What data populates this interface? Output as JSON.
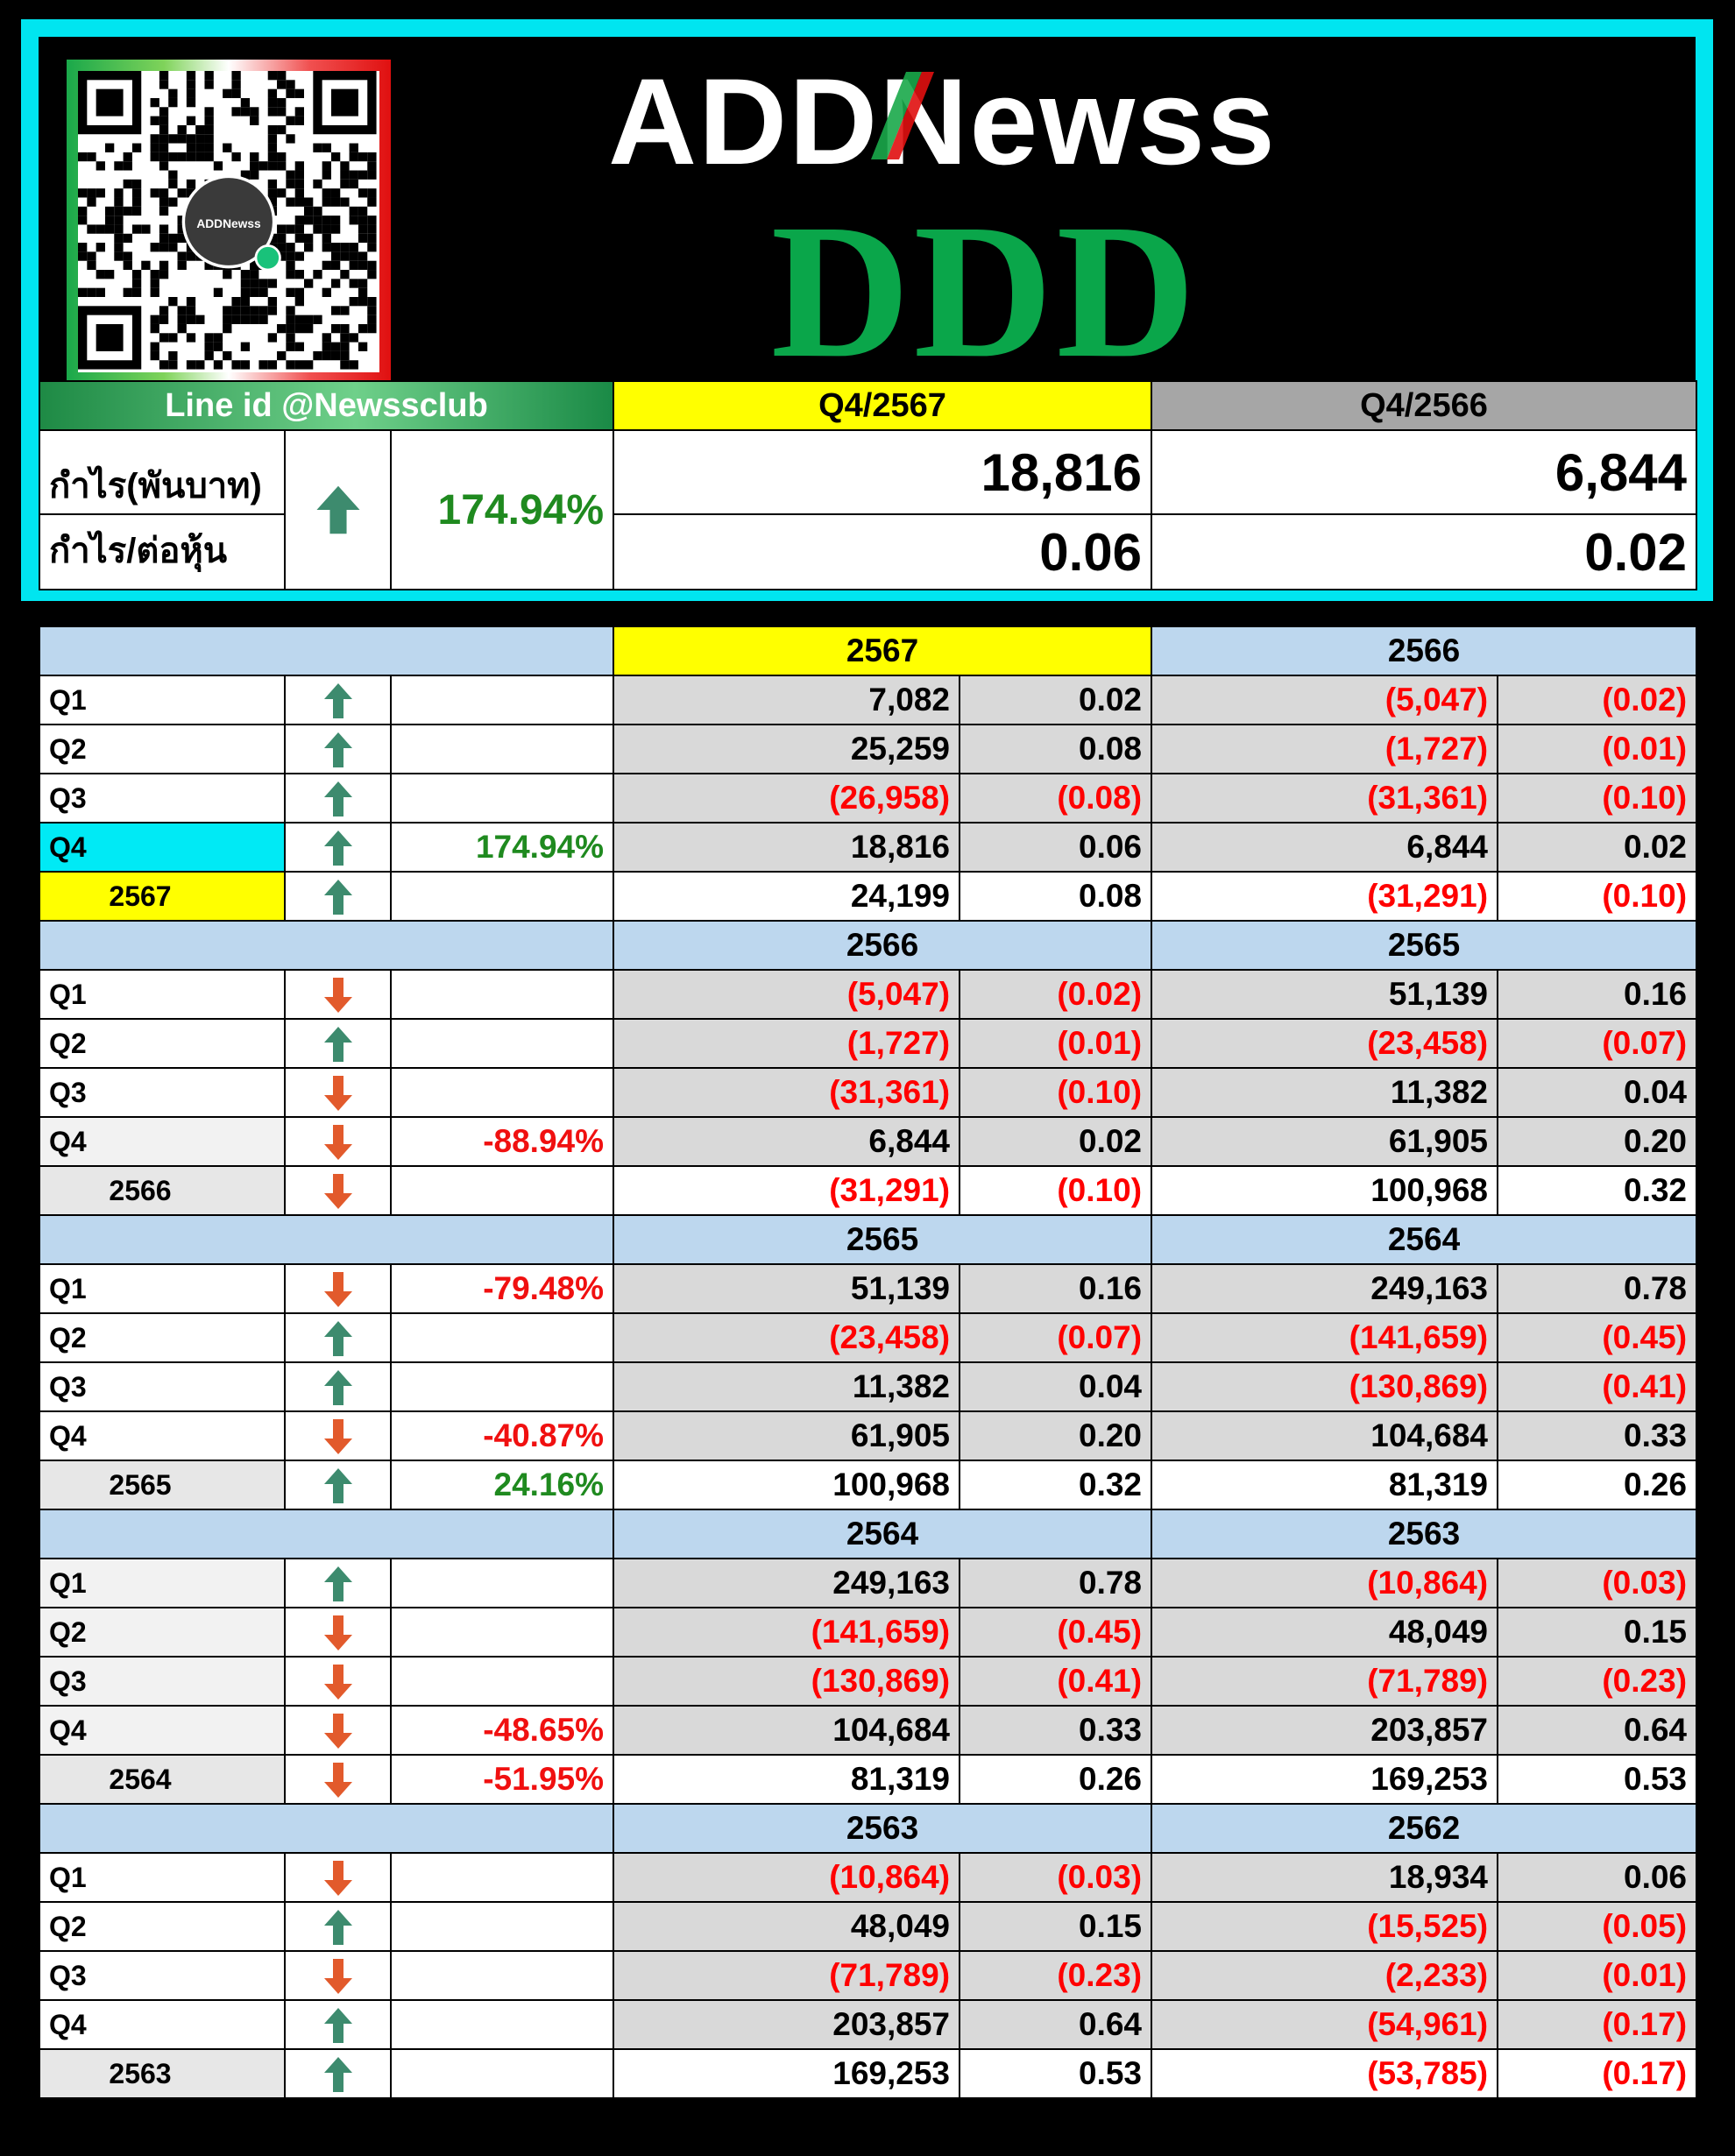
{
  "brand": {
    "logo_text": "ADDNewss",
    "qr_center_text": "ADDNewss"
  },
  "ticker": "DDD",
  "summary": {
    "line_id": "Line id @Newssclub",
    "period_current": "Q4/2567",
    "period_previous": "Q4/2566",
    "profit_label": "กำไร(พันบาท)",
    "eps_label": "กำไร/ต่อหุ้น",
    "direction": "up",
    "change_pct": "174.94%",
    "profit_current": "18,816",
    "profit_previous": "6,844",
    "eps_current": "0.06",
    "eps_previous": "0.02"
  },
  "blocks": [
    {
      "year_current": "2567",
      "year_previous": "2566",
      "current_highlight": true,
      "rows": [
        {
          "label": "Q1",
          "dir": "up",
          "pct": "",
          "profit": "7,082",
          "eps": "0.02",
          "prev_profit": "(5,047)",
          "prev_eps": "(0.02)"
        },
        {
          "label": "Q2",
          "dir": "up",
          "pct": "",
          "profit": "25,259",
          "eps": "0.08",
          "prev_profit": "(1,727)",
          "prev_eps": "(0.01)"
        },
        {
          "label": "Q3",
          "dir": "up",
          "pct": "",
          "profit": "(26,958)",
          "eps": "(0.08)",
          "prev_profit": "(31,361)",
          "prev_eps": "(0.10)"
        },
        {
          "label": "Q4",
          "dir": "up",
          "pct": "174.94%",
          "profit": "18,816",
          "eps": "0.06",
          "prev_profit": "6,844",
          "prev_eps": "0.02",
          "label_style": "cyan"
        },
        {
          "label": "2567",
          "dir": "up",
          "pct": "",
          "profit": "24,199",
          "eps": "0.08",
          "prev_profit": "(31,291)",
          "prev_eps": "(0.10)",
          "is_total": true,
          "label_style": "yellow"
        }
      ]
    },
    {
      "year_current": "2566",
      "year_previous": "2565",
      "current_highlight": false,
      "rows": [
        {
          "label": "Q1",
          "dir": "down",
          "pct": "",
          "profit": "(5,047)",
          "eps": "(0.02)",
          "prev_profit": "51,139",
          "prev_eps": "0.16"
        },
        {
          "label": "Q2",
          "dir": "up",
          "pct": "",
          "profit": "(1,727)",
          "eps": "(0.01)",
          "prev_profit": "(23,458)",
          "prev_eps": "(0.07)"
        },
        {
          "label": "Q3",
          "dir": "down",
          "pct": "",
          "profit": "(31,361)",
          "eps": "(0.10)",
          "prev_profit": "11,382",
          "prev_eps": "0.04"
        },
        {
          "label": "Q4",
          "dir": "down",
          "pct": "-88.94%",
          "profit": "6,844",
          "eps": "0.02",
          "prev_profit": "61,905",
          "prev_eps": "0.20",
          "label_style": "gray"
        },
        {
          "label": "2566",
          "dir": "down",
          "pct": "",
          "profit": "(31,291)",
          "eps": "(0.10)",
          "prev_profit": "100,968",
          "prev_eps": "0.32",
          "is_total": true,
          "label_style": "gray"
        }
      ]
    },
    {
      "year_current": "2565",
      "year_previous": "2564",
      "current_highlight": false,
      "rows": [
        {
          "label": "Q1",
          "dir": "down",
          "pct": "-79.48%",
          "profit": "51,139",
          "eps": "0.16",
          "prev_profit": "249,163",
          "prev_eps": "0.78"
        },
        {
          "label": "Q2",
          "dir": "up",
          "pct": "",
          "profit": "(23,458)",
          "eps": "(0.07)",
          "prev_profit": "(141,659)",
          "prev_eps": "(0.45)"
        },
        {
          "label": "Q3",
          "dir": "up",
          "pct": "",
          "profit": "11,382",
          "eps": "0.04",
          "prev_profit": "(130,869)",
          "prev_eps": "(0.41)"
        },
        {
          "label": "Q4",
          "dir": "down",
          "pct": "-40.87%",
          "profit": "61,905",
          "eps": "0.20",
          "prev_profit": "104,684",
          "prev_eps": "0.33"
        },
        {
          "label": "2565",
          "dir": "up",
          "pct": "24.16%",
          "profit": "100,968",
          "eps": "0.32",
          "prev_profit": "81,319",
          "prev_eps": "0.26",
          "is_total": true,
          "label_style": "gray"
        }
      ]
    },
    {
      "year_current": "2564",
      "year_previous": "2563",
      "current_highlight": false,
      "rows": [
        {
          "label": "Q1",
          "dir": "up",
          "pct": "",
          "profit": "249,163",
          "eps": "0.78",
          "prev_profit": "(10,864)",
          "prev_eps": "(0.03)",
          "label_style": "gray"
        },
        {
          "label": "Q2",
          "dir": "down",
          "pct": "",
          "profit": "(141,659)",
          "eps": "(0.45)",
          "prev_profit": "48,049",
          "prev_eps": "0.15",
          "label_style": "gray"
        },
        {
          "label": "Q3",
          "dir": "down",
          "pct": "",
          "profit": "(130,869)",
          "eps": "(0.41)",
          "prev_profit": "(71,789)",
          "prev_eps": "(0.23)",
          "label_style": "gray"
        },
        {
          "label": "Q4",
          "dir": "down",
          "pct": "-48.65%",
          "profit": "104,684",
          "eps": "0.33",
          "prev_profit": "203,857",
          "prev_eps": "0.64",
          "label_style": "gray"
        },
        {
          "label": "2564",
          "dir": "down",
          "pct": "-51.95%",
          "profit": "81,319",
          "eps": "0.26",
          "prev_profit": "169,253",
          "prev_eps": "0.53",
          "is_total": true,
          "label_style": "gray"
        }
      ]
    },
    {
      "year_current": "2563",
      "year_previous": "2562",
      "current_highlight": false,
      "rows": [
        {
          "label": "Q1",
          "dir": "down",
          "pct": "",
          "profit": "(10,864)",
          "eps": "(0.03)",
          "prev_profit": "18,934",
          "prev_eps": "0.06"
        },
        {
          "label": "Q2",
          "dir": "up",
          "pct": "",
          "profit": "48,049",
          "eps": "0.15",
          "prev_profit": "(15,525)",
          "prev_eps": "(0.05)"
        },
        {
          "label": "Q3",
          "dir": "down",
          "pct": "",
          "profit": "(71,789)",
          "eps": "(0.23)",
          "prev_profit": "(2,233)",
          "prev_eps": "(0.01)"
        },
        {
          "label": "Q4",
          "dir": "up",
          "pct": "",
          "profit": "203,857",
          "eps": "0.64",
          "prev_profit": "(54,961)",
          "prev_eps": "(0.17)"
        },
        {
          "label": "2563",
          "dir": "up",
          "pct": "",
          "profit": "169,253",
          "eps": "0.53",
          "prev_profit": "(53,785)",
          "prev_eps": "(0.17)",
          "is_total": true,
          "label_style": "gray"
        }
      ]
    }
  ],
  "colors": {
    "up_arrow": "#3d8b6e",
    "down_arrow": "#e25a2c",
    "negative": "#ff0000",
    "header_blue": "#bdd7ee",
    "highlight_yellow": "#ffff00",
    "ticker_green": "#0aa64a"
  }
}
